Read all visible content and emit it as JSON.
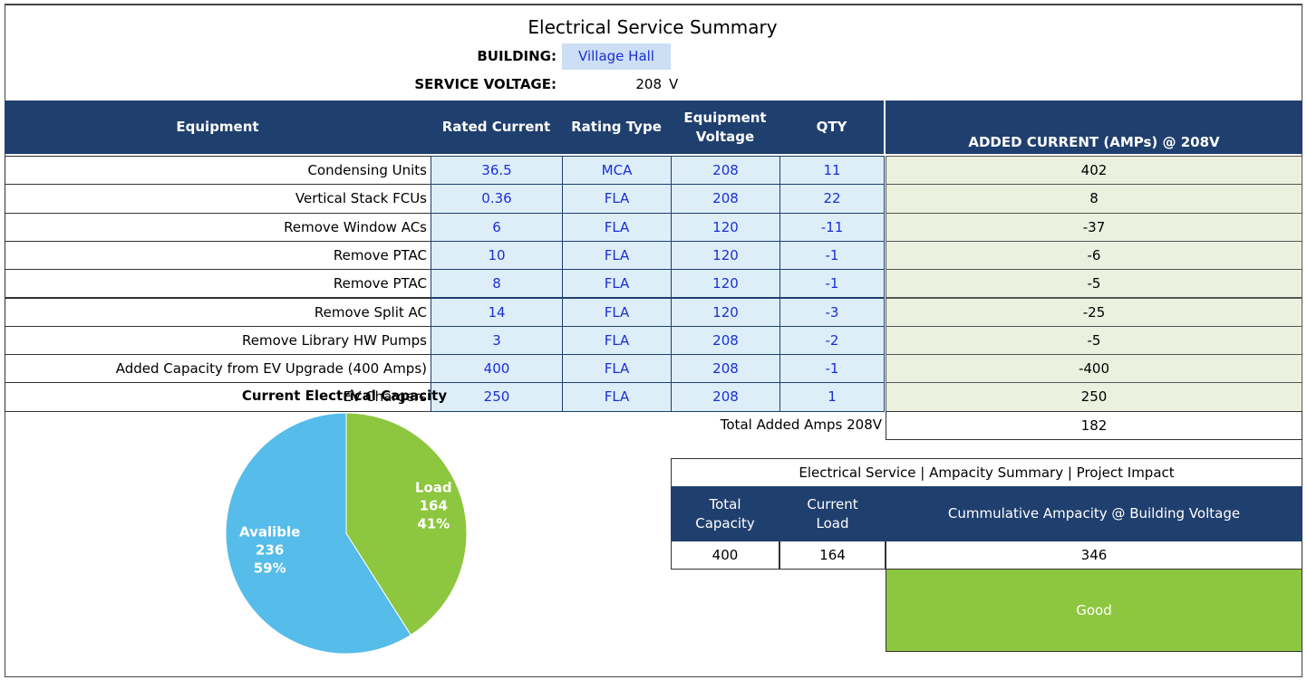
{
  "title": "Electrical Service Summary",
  "building": {
    "label": "BUILDING:",
    "value": "Village Hall"
  },
  "service_voltage": {
    "label": "SERVICE VOLTAGE:",
    "value": 208,
    "unit": "V"
  },
  "equipment_table": {
    "headers": [
      "Equipment",
      "Rated Current",
      "Rating Type",
      "Equipment Voltage",
      "QTY",
      "ADDED CURRENT (AMPs) @ 208V"
    ],
    "rows": [
      [
        "Condensing Units",
        36.5,
        "MCA",
        208,
        11,
        402
      ],
      [
        "Vertical Stack FCUs",
        0.36,
        "FLA",
        208,
        22,
        8
      ],
      [
        "Remove Window ACs",
        6,
        "FLA",
        120,
        -11,
        -37
      ],
      [
        "Remove PTAC",
        10,
        "FLA",
        120,
        -1,
        -6
      ],
      [
        "Remove PTAC",
        8,
        "FLA",
        120,
        -1,
        -5
      ],
      [
        "Remove Split AC",
        14,
        "FLA",
        120,
        -3,
        -25
      ],
      [
        "Remove Library HW Pumps",
        3,
        "FLA",
        208,
        -2,
        -5
      ],
      [
        "Added Capacity from EV Upgrade (400 Amps)",
        400,
        "FLA",
        208,
        -1,
        -400
      ],
      [
        "EV Chargers",
        250,
        "FLA",
        208,
        1,
        250
      ]
    ]
  },
  "total": {
    "label": "Total Added Amps 208V",
    "value": 182
  },
  "summary": {
    "title": "Electrical Service | Ampacity Summary | Project Impact",
    "headers": [
      "Total Capacity",
      "Current Load",
      "Cummulative Ampacity @ Building Voltage"
    ],
    "values": [
      400,
      164,
      346
    ],
    "status": "Good"
  },
  "chart_data": {
    "type": "pie",
    "title": "Current Electrical Capacity",
    "categories": [
      "Load",
      "Avalible"
    ],
    "values": [
      164,
      236
    ],
    "percent_labels": [
      "41%",
      "59%"
    ],
    "colors": [
      "#8dc63f",
      "#56bce9"
    ]
  }
}
